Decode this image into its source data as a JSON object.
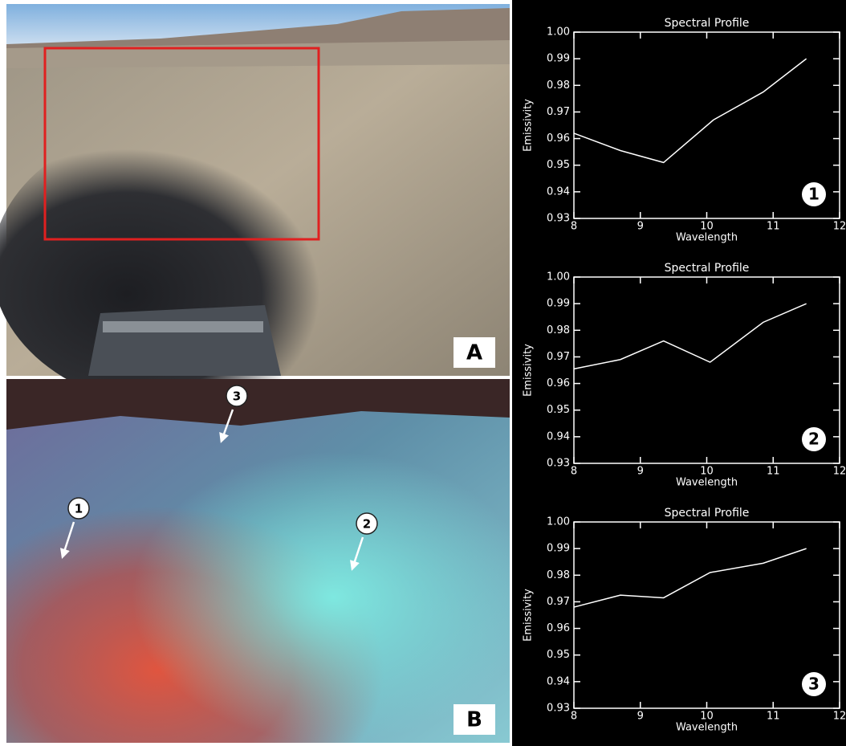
{
  "chart_data": [
    {
      "type": "line",
      "title": "Spectral Profile",
      "xlabel": "Wavelength",
      "ylabel": "Emissivity",
      "annotation": "1",
      "x": [
        8,
        8.7,
        9.35,
        10.1,
        10.85,
        11.5
      ],
      "values": [
        0.962,
        0.9555,
        0.951,
        0.967,
        0.9775,
        0.99
      ],
      "color": "#ffffff",
      "xlim": [
        8,
        12
      ],
      "xticks": [
        8,
        9,
        10,
        11,
        12
      ],
      "ylim": [
        0.93,
        1.0
      ],
      "yticks": [
        0.93,
        0.94,
        0.95,
        0.96,
        0.97,
        0.98,
        0.99,
        {
          "value": 1,
          "label": "1.00"
        }
      ]
    },
    {
      "type": "line",
      "title": "Spectral Profile",
      "xlabel": "Wavelength",
      "ylabel": "Emissivity",
      "annotation": "2",
      "x": [
        8,
        8.7,
        9.35,
        10.05,
        10.85,
        11.5
      ],
      "values": [
        0.9655,
        0.969,
        0.976,
        0.968,
        0.983,
        0.99
      ],
      "color": "#ffffff",
      "xlim": [
        8,
        12
      ],
      "xticks": [
        8,
        9,
        10,
        11,
        12
      ],
      "ylim": [
        0.93,
        1.0
      ],
      "yticks": [
        0.93,
        0.94,
        0.95,
        0.96,
        0.97,
        0.98,
        0.99,
        {
          "value": 1,
          "label": "1.00"
        }
      ]
    },
    {
      "type": "line",
      "title": "Spectral Profile",
      "xlabel": "Wavelength",
      "ylabel": "Emissivity",
      "annotation": "3",
      "x": [
        8,
        8.7,
        9.35,
        10.05,
        10.85,
        11.5
      ],
      "values": [
        0.968,
        0.9725,
        0.9715,
        0.981,
        0.9845,
        0.99
      ],
      "color": "#ffffff",
      "xlim": [
        8,
        12
      ],
      "xticks": [
        8,
        9,
        10,
        11,
        12
      ],
      "ylim": [
        0.93,
        1.0
      ],
      "yticks": [
        0.93,
        0.94,
        0.95,
        0.96,
        0.97,
        0.98,
        0.99,
        {
          "value": 1,
          "label": "1.00"
        }
      ]
    }
  ],
  "panel_labels": [
    "A",
    "B"
  ],
  "photo_markers": [
    "1",
    "2",
    "3"
  ]
}
